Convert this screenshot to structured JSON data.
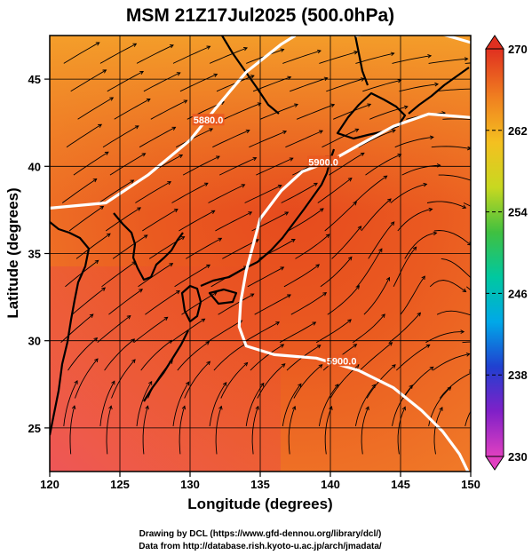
{
  "chart_data": {
    "type": "heatmap",
    "title": "MSM 21Z17Jul2025 (500.0hPa)",
    "xlabel": "Longitude (degrees)",
    "ylabel": "Latitude  (degrees)",
    "xlim": [
      120,
      150
    ],
    "ylim": [
      22.5,
      47.5
    ],
    "x_ticks": [
      120,
      125,
      130,
      135,
      140,
      145,
      150
    ],
    "y_ticks": [
      25,
      30,
      35,
      40,
      45
    ],
    "grid": true,
    "colorbar": {
      "min": 230,
      "max": 270,
      "ticks": [
        270,
        262,
        254,
        246,
        238,
        230
      ],
      "colors": [
        "#e040c0",
        "#7020c0",
        "#2040d0",
        "#00a0e0",
        "#00c0a0",
        "#40c040",
        "#c0d020",
        "#f0c020",
        "#f08020",
        "#e03020"
      ],
      "triangles": [
        "top",
        "bottom"
      ]
    },
    "contours": [
      {
        "value": 5880,
        "label": "5880.0",
        "points": [
          [
            120,
            37.6
          ],
          [
            124,
            37.9
          ],
          [
            127,
            39.5
          ],
          [
            130,
            41.5
          ],
          [
            132,
            43.5
          ],
          [
            134,
            45.4
          ],
          [
            136.5,
            47.0
          ],
          [
            137.5,
            47.5
          ]
        ],
        "label_at": [
          131.3,
          42.6
        ]
      },
      {
        "value": 5880,
        "label": "",
        "points": [
          [
            141.8,
            47.5
          ],
          [
            144,
            47.8
          ],
          [
            147,
            47.8
          ],
          [
            150,
            47.1
          ]
        ],
        "label_at": null
      },
      {
        "value": 5900,
        "label": "5900.0",
        "points": [
          [
            150,
            42.8
          ],
          [
            147,
            43.0
          ],
          [
            144.5,
            42.3
          ],
          [
            142,
            41.2
          ],
          [
            140,
            40.3
          ],
          [
            138,
            39.7
          ],
          [
            136.5,
            38.6
          ],
          [
            135,
            37.0
          ],
          [
            134,
            34.0
          ],
          [
            133.6,
            32.2
          ],
          [
            133.5,
            30.8
          ],
          [
            134,
            29.7
          ],
          [
            136,
            29.2
          ],
          [
            139,
            29.0
          ],
          [
            142,
            28.3
          ],
          [
            144.5,
            27.3
          ],
          [
            146.5,
            26.0
          ],
          [
            148,
            24.8
          ],
          [
            149.2,
            23.5
          ],
          [
            149.8,
            22.5
          ]
        ],
        "label_at": [
          139.5,
          40.2
        ],
        "label2_at": [
          140.8,
          28.8
        ],
        "label2": "5900.0"
      }
    ]
  },
  "credits": {
    "line1": "Drawing by DCL (https://www.gfd-dennou.org/library/dcl/)",
    "line2": "Data from http://database.rish.kyoto-u.ac.jp/arch/jmadata/"
  }
}
